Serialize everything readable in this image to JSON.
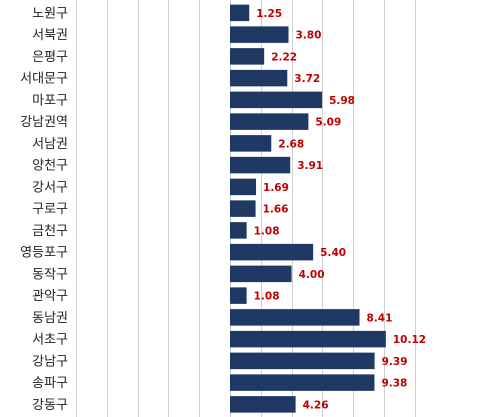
{
  "chart_data": {
    "type": "bar",
    "orientation": "horizontal",
    "categories": [
      "노원구",
      "서북권",
      "은평구",
      "서대문구",
      "마포구",
      "강남권역",
      "서남권",
      "양천구",
      "강서구",
      "구로구",
      "금천구",
      "영등포구",
      "동작구",
      "관악구",
      "동남권",
      "서초구",
      "강남구",
      "송파구",
      "강동구"
    ],
    "values": [
      1.25,
      3.8,
      2.22,
      3.72,
      5.98,
      5.09,
      2.68,
      3.91,
      1.69,
      1.66,
      1.08,
      5.4,
      4.0,
      1.08,
      8.41,
      10.12,
      9.39,
      9.38,
      4.26
    ],
    "value_labels": [
      "1.25",
      "3.80",
      "2.22",
      "3.72",
      "5.98",
      "5.09",
      "2.68",
      "3.91",
      "1.69",
      "1.66",
      "1.08",
      "5.40",
      "4.00",
      "1.08",
      "8.41",
      "10.12",
      "9.39",
      "9.38",
      "4.26"
    ],
    "xlim": [
      -10,
      12
    ],
    "grid": "vertical",
    "bar_color": "#1f3864",
    "label_color": "#c00000"
  }
}
